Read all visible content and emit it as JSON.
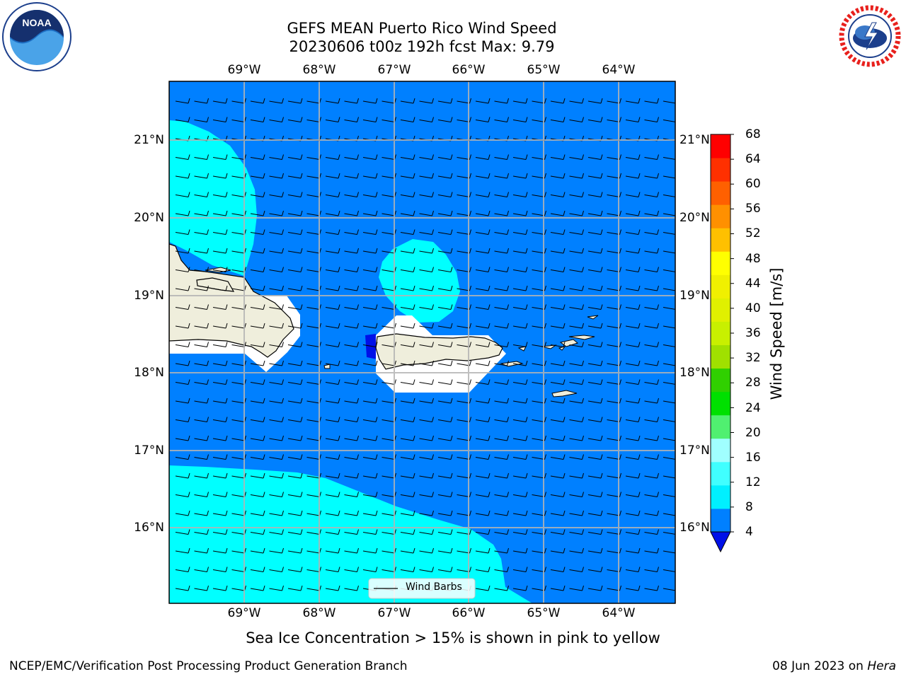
{
  "title": "GEFS MEAN Puerto Rico Wind Speed",
  "subtitle": "20230606 t00z 192h fcst   Max: 9.79",
  "lon_labels": [
    "69°W",
    "68°W",
    "67°W",
    "66°W",
    "65°W",
    "64°W"
  ],
  "lat_labels": [
    "21°N",
    "20°N",
    "19°N",
    "18°N",
    "17°N",
    "16°N"
  ],
  "colorbar": {
    "label": "Wind Speed [m/s]",
    "ticks": [
      "68",
      "64",
      "60",
      "56",
      "52",
      "48",
      "44",
      "40",
      "36",
      "32",
      "28",
      "24",
      "20",
      "16",
      "12",
      "8",
      "4"
    ],
    "colors": [
      "#0010e8",
      "#0080ff",
      "#00f0ff",
      "#40ffff",
      "#a0ffff",
      "#50f070",
      "#00e000",
      "#30d000",
      "#a0e000",
      "#c8f000",
      "#e0f000",
      "#f0f000",
      "#ffff00",
      "#ffc000",
      "#ff9000",
      "#ff6000",
      "#ff3000",
      "#ff0000"
    ]
  },
  "legend": {
    "label": "Wind Barbs"
  },
  "caption": "Sea Ice Concentration > 15% is shown in pink to yellow",
  "footer": {
    "left": "NCEP/EMC/Verification Post Processing Product Generation Branch",
    "right_date": "08 Jun 2023 on ",
    "right_machine": "Hera"
  },
  "logos": {
    "left": "NOAA",
    "right": "NATIONAL WEATHER SERVICE"
  },
  "map_colors": {
    "ocean_4_8": "#0080ff",
    "ocean_8_12": "#00ffff",
    "below_4": "#0010e8",
    "land": "#efeedc"
  }
}
